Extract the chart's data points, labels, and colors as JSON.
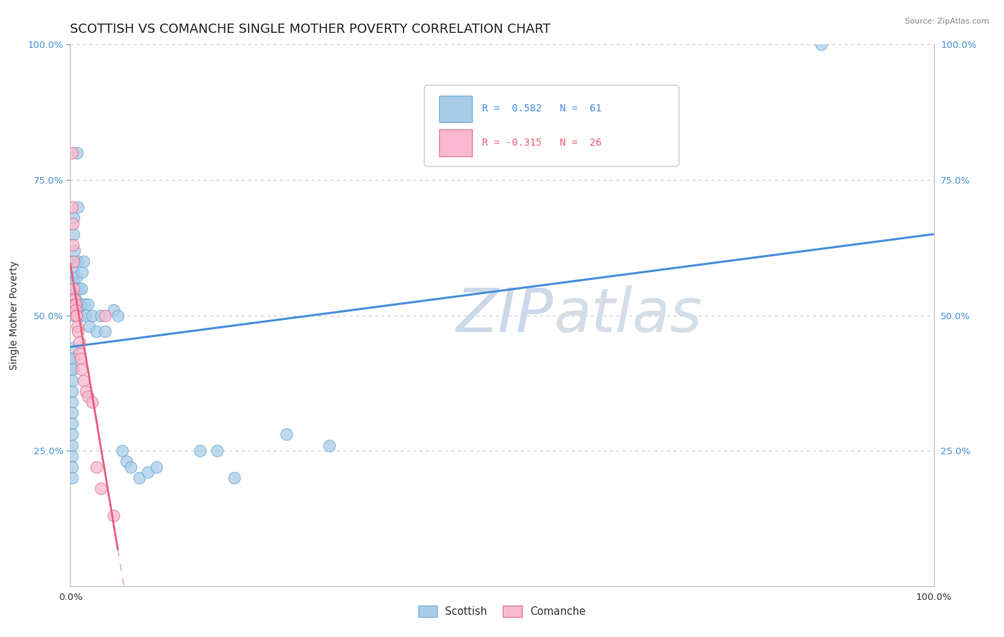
{
  "title": "SCOTTISH VS COMANCHE SINGLE MOTHER POVERTY CORRELATION CHART",
  "source": "Source: ZipAtlas.com",
  "ylabel": "Single Mother Poverty",
  "legend_r_scottish": "R =  0.582",
  "legend_n_scottish": "N =  61",
  "legend_r_comanche": "R = -0.315",
  "legend_n_comanche": "N =  26",
  "scottish_color": "#a8cce8",
  "scottish_edge": "#6aaad4",
  "comanche_color": "#f9b8cf",
  "comanche_edge": "#e07090",
  "trend_blue": "#4a90d9",
  "trend_pink": "#e8607a",
  "legend_r_blue": "#4a90d9",
  "legend_r_pink": "#e8607a",
  "watermark_zip": "#c8d4e8",
  "watermark_atlas": "#c8d4e8",
  "background": "#ffffff",
  "grid_color": "#cccccc",
  "scottish_points": [
    [
      0.002,
      0.42
    ],
    [
      0.002,
      0.4
    ],
    [
      0.002,
      0.38
    ],
    [
      0.002,
      0.36
    ],
    [
      0.002,
      0.34
    ],
    [
      0.002,
      0.32
    ],
    [
      0.002,
      0.3
    ],
    [
      0.002,
      0.28
    ],
    [
      0.002,
      0.26
    ],
    [
      0.002,
      0.24
    ],
    [
      0.002,
      0.22
    ],
    [
      0.002,
      0.2
    ],
    [
      0.003,
      0.44
    ],
    [
      0.003,
      0.42
    ],
    [
      0.003,
      0.4
    ],
    [
      0.003,
      0.55
    ],
    [
      0.003,
      0.57
    ],
    [
      0.003,
      0.6
    ],
    [
      0.004,
      0.58
    ],
    [
      0.004,
      0.56
    ],
    [
      0.004,
      0.65
    ],
    [
      0.004,
      0.68
    ],
    [
      0.005,
      0.5
    ],
    [
      0.005,
      0.52
    ],
    [
      0.005,
      0.6
    ],
    [
      0.005,
      0.62
    ],
    [
      0.006,
      0.55
    ],
    [
      0.006,
      0.53
    ],
    [
      0.007,
      0.57
    ],
    [
      0.007,
      0.55
    ],
    [
      0.008,
      0.8
    ],
    [
      0.009,
      0.7
    ],
    [
      0.009,
      0.6
    ],
    [
      0.01,
      0.55
    ],
    [
      0.011,
      0.52
    ],
    [
      0.012,
      0.5
    ],
    [
      0.013,
      0.55
    ],
    [
      0.014,
      0.58
    ],
    [
      0.015,
      0.6
    ],
    [
      0.016,
      0.52
    ],
    [
      0.018,
      0.5
    ],
    [
      0.02,
      0.52
    ],
    [
      0.022,
      0.48
    ],
    [
      0.025,
      0.5
    ],
    [
      0.03,
      0.47
    ],
    [
      0.035,
      0.5
    ],
    [
      0.04,
      0.47
    ],
    [
      0.05,
      0.51
    ],
    [
      0.055,
      0.5
    ],
    [
      0.06,
      0.25
    ],
    [
      0.065,
      0.23
    ],
    [
      0.07,
      0.22
    ],
    [
      0.08,
      0.2
    ],
    [
      0.09,
      0.21
    ],
    [
      0.1,
      0.22
    ],
    [
      0.15,
      0.25
    ],
    [
      0.17,
      0.25
    ],
    [
      0.19,
      0.2
    ],
    [
      0.25,
      0.28
    ],
    [
      0.3,
      0.26
    ],
    [
      0.87,
      1.0
    ]
  ],
  "comanche_points": [
    [
      0.002,
      0.8
    ],
    [
      0.002,
      0.7
    ],
    [
      0.003,
      0.67
    ],
    [
      0.003,
      0.63
    ],
    [
      0.004,
      0.6
    ],
    [
      0.004,
      0.55
    ],
    [
      0.005,
      0.53
    ],
    [
      0.005,
      0.52
    ],
    [
      0.006,
      0.52
    ],
    [
      0.006,
      0.51
    ],
    [
      0.007,
      0.5
    ],
    [
      0.007,
      0.5
    ],
    [
      0.008,
      0.48
    ],
    [
      0.009,
      0.47
    ],
    [
      0.01,
      0.45
    ],
    [
      0.01,
      0.43
    ],
    [
      0.012,
      0.42
    ],
    [
      0.013,
      0.4
    ],
    [
      0.015,
      0.38
    ],
    [
      0.018,
      0.36
    ],
    [
      0.02,
      0.35
    ],
    [
      0.025,
      0.34
    ],
    [
      0.03,
      0.22
    ],
    [
      0.035,
      0.18
    ],
    [
      0.04,
      0.5
    ],
    [
      0.05,
      0.13
    ]
  ],
  "xlim": [
    0.0,
    1.0
  ],
  "ylim": [
    0.0,
    1.0
  ],
  "tick_fontsize": 9.5,
  "axis_label_fontsize": 10
}
